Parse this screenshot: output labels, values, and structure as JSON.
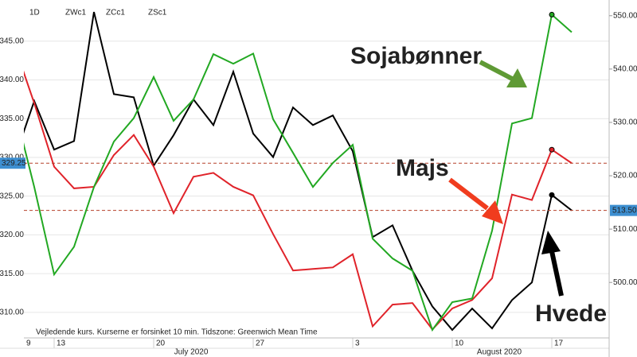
{
  "chart_data": {
    "type": "line",
    "interval": "1D",
    "categories": [
      "9",
      null,
      "13",
      null,
      null,
      null,
      null,
      "20",
      null,
      null,
      null,
      null,
      "27",
      null,
      null,
      null,
      null,
      "3",
      null,
      null,
      null,
      null,
      "10",
      null,
      null,
      null,
      null,
      "17",
      null
    ],
    "months": [
      "July 2020",
      "August 2020"
    ],
    "note": "Vejledende kurs. Kurserne er forsinket 10 min.   Tidszone: Greenwich Mean Time",
    "series": [
      {
        "name": "ZWc1",
        "color": "#000000",
        "axis": "y2",
        "values": [
          523.1,
          534.0,
          524.9,
          526.5,
          550.7,
          535.3,
          534.7,
          521.9,
          527.6,
          534.3,
          529.5,
          539.5,
          527.9,
          523.5,
          532.8,
          529.5,
          531.3,
          524.6,
          508.5,
          510.7,
          502.2,
          495.5,
          491.1,
          495.1,
          491.4,
          496.7,
          500.0,
          516.4,
          513.5
        ],
        "value_labels": [
          null,
          null,
          null,
          null,
          null,
          null,
          null,
          null,
          null,
          null,
          null,
          null,
          null,
          null,
          null,
          null,
          null,
          null,
          null,
          null,
          null,
          null,
          null,
          null,
          null,
          null,
          null,
          null,
          "513.50"
        ]
      },
      {
        "name": "ZCc1",
        "color": "#e0232a",
        "values": [
          344.5,
          337.0,
          328.8,
          326.0,
          326.2,
          330.3,
          332.9,
          328.8,
          322.8,
          327.5,
          328.0,
          326.2,
          325.1,
          320.1,
          315.4,
          315.6,
          315.8,
          317.5,
          308.2,
          311.0,
          311.2,
          307.8,
          310.5,
          311.6,
          314.4,
          325.2,
          324.5,
          331.0,
          329.25
        ],
        "value_labels": [
          null,
          null,
          null,
          null,
          null,
          null,
          null,
          null,
          null,
          null,
          null,
          null,
          null,
          null,
          null,
          null,
          null,
          null,
          null,
          null,
          null,
          null,
          null,
          null,
          null,
          null,
          null,
          null,
          "329.25"
        ]
      },
      {
        "name": "ZSc1",
        "color": "#22a822",
        "axis": "y2",
        "values": [
          532.8,
          517.9,
          501.5,
          506.7,
          517.9,
          526.4,
          530.8,
          538.5,
          530.3,
          534.3,
          542.8,
          541.0,
          542.9,
          530.6,
          524.3,
          517.9,
          522.4,
          525.8,
          508.2,
          504.5,
          502.2,
          491.1,
          496.3,
          497.0,
          509.7,
          529.8,
          530.8,
          550.2,
          546.9
        ]
      }
    ],
    "ylim": [
      306.7,
      349.8
    ],
    "yticks": [
      {
        "value": 310,
        "label": "310.00"
      },
      {
        "value": 315,
        "label": "315.00"
      },
      {
        "value": 320,
        "label": "320.00"
      },
      {
        "value": 325,
        "label": "325.00"
      },
      {
        "value": 330,
        "label": "330.00"
      },
      {
        "value": 335,
        "label": "335.00"
      },
      {
        "value": 340,
        "label": "340.00"
      },
      {
        "value": 345,
        "label": "345.00"
      }
    ],
    "y2lim": [
      489.6,
      552.2
    ],
    "y2ticks": [
      {
        "value": 500,
        "label": "500.00"
      },
      {
        "value": 510,
        "label": "510.00"
      },
      {
        "value": 520,
        "label": "520.00"
      },
      {
        "value": 530,
        "label": "530.00"
      },
      {
        "value": 540,
        "label": "540.00"
      },
      {
        "value": 550,
        "label": "550.00"
      }
    ],
    "grid": true,
    "annotations": [
      {
        "text": "Sojabønner",
        "color": "#5f9a35"
      },
      {
        "text": "Majs",
        "color": "#f03c1e"
      },
      {
        "text": "Hvede",
        "color": "#000000"
      }
    ]
  }
}
